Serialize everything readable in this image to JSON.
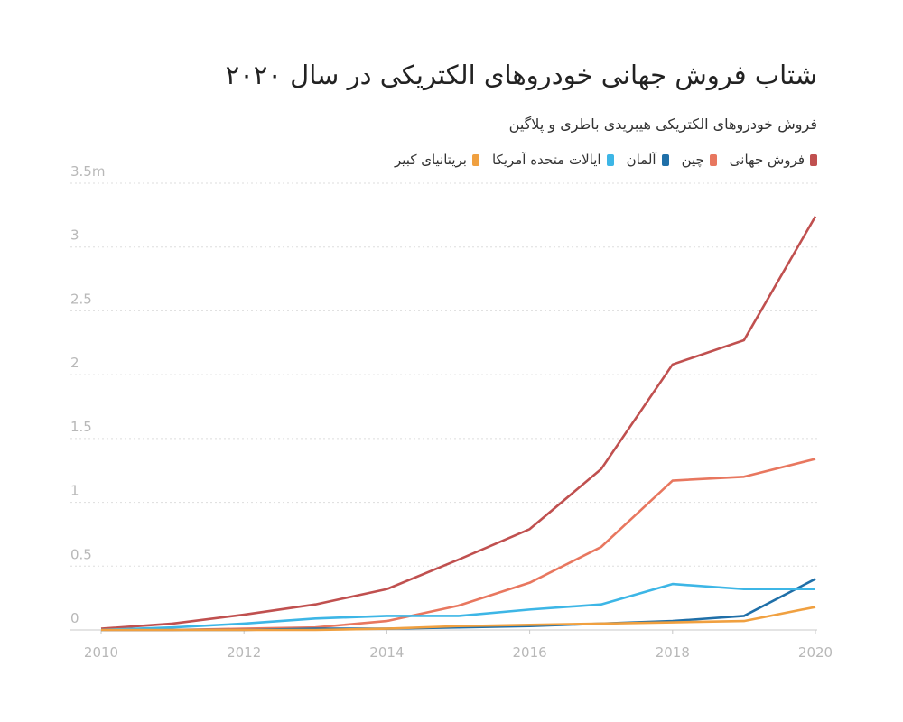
{
  "chart_data": {
    "type": "line",
    "title": "شتاب فروش جهانی خودروهای الکتریکی در سال ۲۰۲۰",
    "subtitle": "فروش خودروهای الکتریکی هیبریدی باطری و پلاگین",
    "x": [
      2010,
      2011,
      2012,
      2013,
      2014,
      2015,
      2016,
      2017,
      2018,
      2019,
      2020
    ],
    "series": [
      {
        "name": "فروش جهانی",
        "color": "#c0504f",
        "values": [
          0.01,
          0.05,
          0.12,
          0.2,
          0.32,
          0.55,
          0.79,
          1.26,
          2.08,
          2.27,
          3.24
        ]
      },
      {
        "name": "چین",
        "color": "#e8775f",
        "values": [
          0,
          0,
          0.01,
          0.02,
          0.07,
          0.19,
          0.37,
          0.65,
          1.17,
          1.2,
          1.34
        ]
      },
      {
        "name": "آلمان",
        "color": "#1f6fa8",
        "values": [
          0,
          0,
          0,
          0.01,
          0.01,
          0.02,
          0.03,
          0.05,
          0.07,
          0.11,
          0.4
        ]
      },
      {
        "name": "ایالات متحده آمریکا",
        "color": "#3db6e6",
        "values": [
          0,
          0.02,
          0.05,
          0.09,
          0.11,
          0.11,
          0.16,
          0.2,
          0.36,
          0.32,
          0.32
        ]
      },
      {
        "name": "بریتانیای کبیر",
        "color": "#f0a040",
        "values": [
          0,
          0,
          0,
          0,
          0.01,
          0.03,
          0.04,
          0.05,
          0.06,
          0.07,
          0.18
        ]
      }
    ],
    "xlim": [
      2010,
      2020
    ],
    "xticks": [
      2010,
      2012,
      2014,
      2016,
      2018,
      2020
    ],
    "ylim": [
      0,
      3.5
    ],
    "yticks": [
      0,
      0.5,
      1,
      1.5,
      2,
      2.5,
      3,
      {
        "value": 3.5,
        "label": "3.5m"
      }
    ],
    "grid": true
  }
}
